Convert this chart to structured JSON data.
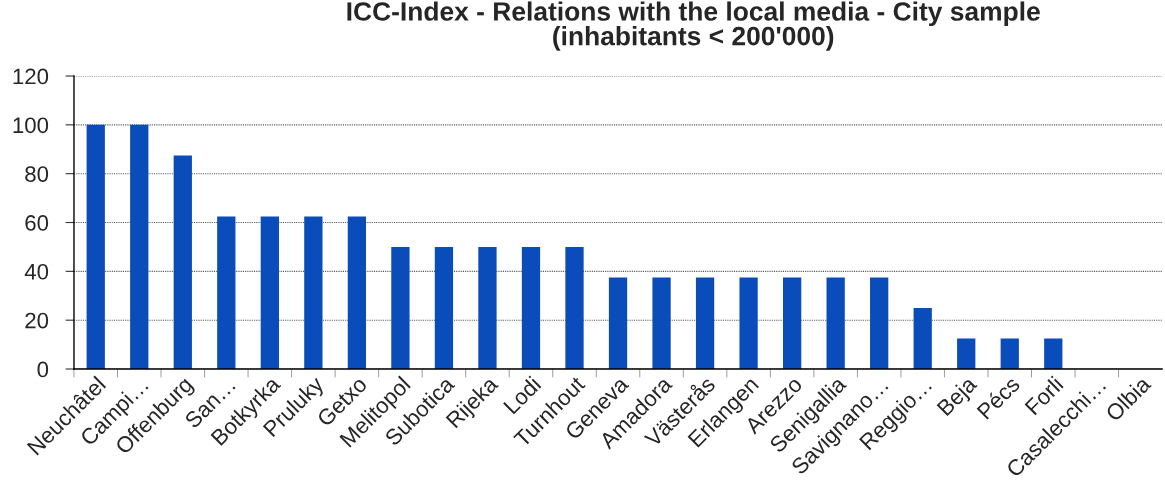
{
  "chart_data": {
    "type": "bar",
    "title": "ICC-Index - Relations with the local media - City sample\n(inhabitants < 200'000)",
    "categories": [
      "Neuchâtel",
      "Campi…",
      "Offenburg",
      "San…",
      "Botkyrka",
      "Pruluky",
      "Getxo",
      "Melitopol",
      "Subotica",
      "Rijeka",
      "Lodi",
      "Turnhout",
      "Geneva",
      "Amadora",
      "Västerås",
      "Erlangen",
      "Arezzo",
      "Senigallia",
      "Savignano…",
      "Reggio…",
      "Beja",
      "Pécs",
      "Forli",
      "Casalecchi…",
      "Olbia"
    ],
    "values": [
      100,
      100,
      87.5,
      62.5,
      62.5,
      62.5,
      62.5,
      50,
      50,
      50,
      50,
      50,
      37.5,
      37.5,
      37.5,
      37.5,
      37.5,
      37.5,
      37.5,
      25,
      12.5,
      12.5,
      12.5,
      0,
      0
    ],
    "color": "#0a4cba",
    "ylim": [
      0,
      120
    ],
    "yticks": [
      0,
      20,
      40,
      60,
      80,
      100,
      120
    ],
    "grid": "y"
  }
}
